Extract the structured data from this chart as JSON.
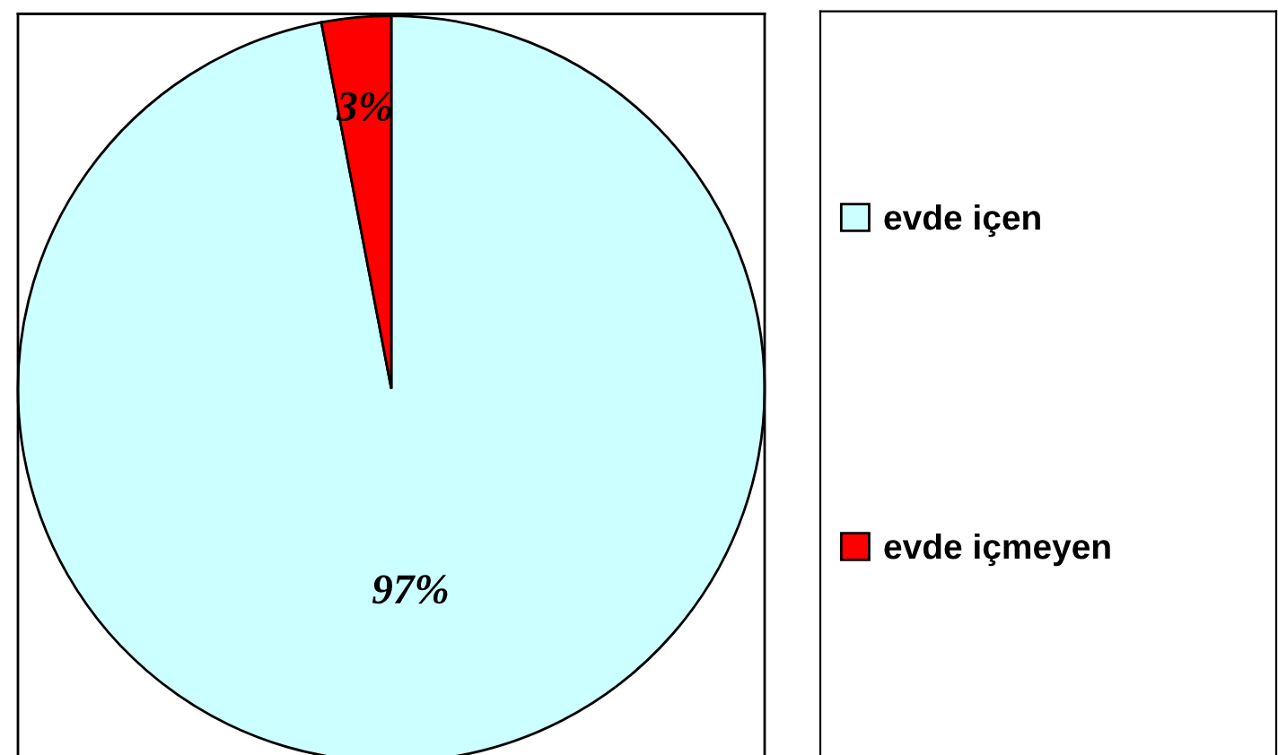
{
  "chart_data": {
    "type": "pie",
    "categories": [
      "evde içen",
      "evde içmeyen"
    ],
    "values": [
      97,
      3
    ],
    "colors": [
      "#ccffff",
      "#ff0000"
    ],
    "value_labels": [
      "97%",
      "3%"
    ],
    "legend": "right"
  }
}
